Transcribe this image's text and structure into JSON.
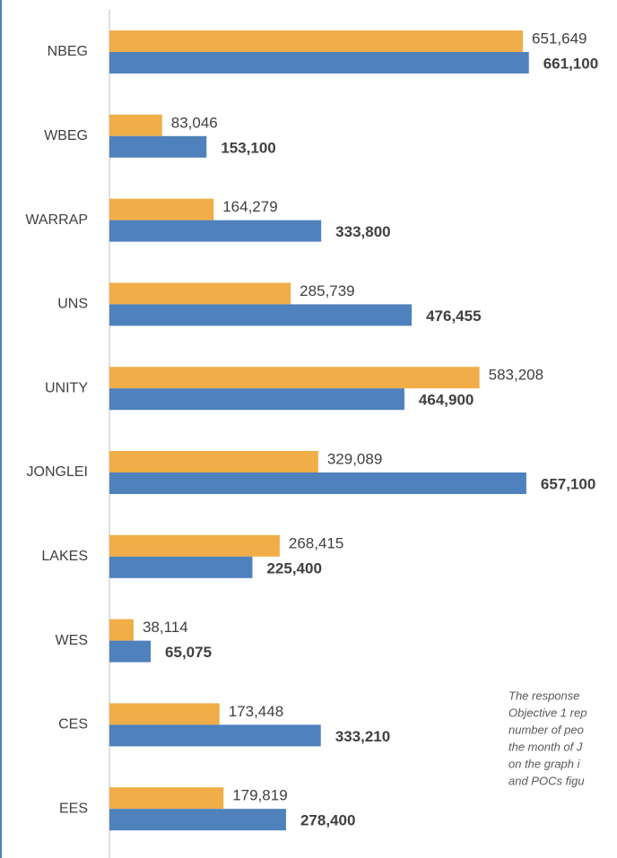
{
  "chart_data": {
    "type": "barh",
    "categories": [
      "NBEG",
      "WBEG",
      "WARRAP",
      "UNS",
      "UNITY",
      "JONGLEI",
      "LAKES",
      "WES",
      "CES",
      "EES"
    ],
    "series": [
      {
        "color": "#f0ad48",
        "values": [
          651649,
          83046,
          164279,
          285739,
          583208,
          329089,
          268415,
          38114,
          173448,
          179819
        ],
        "value_labels": [
          "651,649",
          "83,046",
          "164,279",
          "285,739",
          "583,208",
          "329,089",
          "268,415",
          "38,114",
          "173,448",
          "179,819"
        ]
      },
      {
        "color": "#4f81bd",
        "values": [
          661100,
          153100,
          333800,
          476455,
          464900,
          657100,
          225400,
          65075,
          333210,
          278400
        ],
        "value_labels": [
          "661,100",
          "153,100",
          "333,800",
          "476,455",
          "464,900",
          "657,100",
          "225,400",
          "65,075",
          "333,210",
          "278,400"
        ]
      }
    ],
    "xlim": [
      0,
      800000
    ],
    "annotation_lines": [
      "The response",
      "Objective 1 rep",
      "number of peo",
      "the month of J",
      "on the graph i",
      "and POCs figu"
    ]
  }
}
